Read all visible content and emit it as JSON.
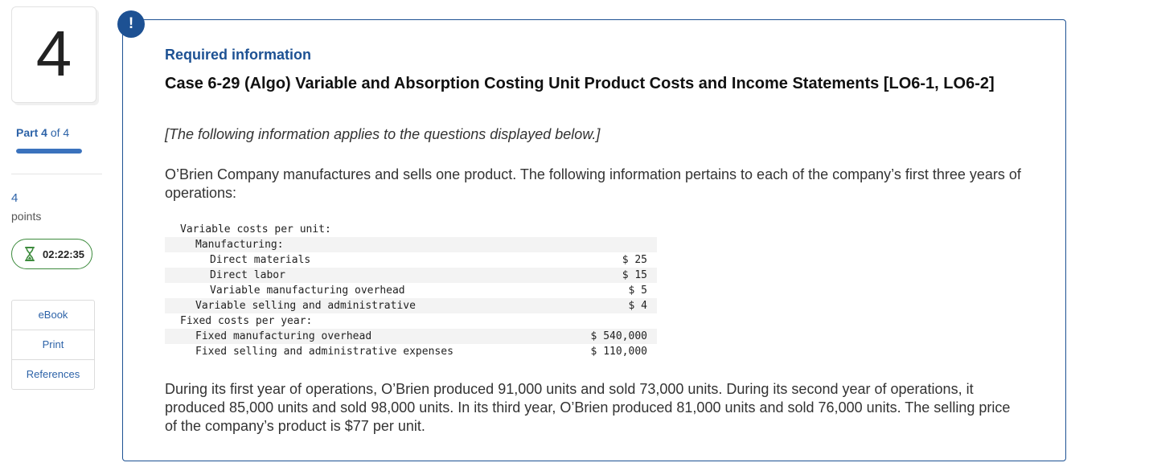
{
  "sidebar": {
    "question_number": "4",
    "part": {
      "word": "Part",
      "current": "4",
      "of_text": "of 4"
    },
    "progress_fraction": 1.0,
    "points_value": "4",
    "points_label": "points",
    "timer": "02:22:35",
    "tools": [
      "eBook",
      "Print",
      "References"
    ]
  },
  "main": {
    "badge": "!",
    "required_info": "Required information",
    "case_title": "Case 6-29 (Algo) Variable and Absorption Costing Unit Product Costs and Income Statements [LO6-1, LO6-2]",
    "intro": "[The following information applies to the questions displayed below.]",
    "paragraph1": "O’Brien Company manufactures and sells one product. The following information pertains to each of the company’s first three years of operations:",
    "table": [
      {
        "label": "Variable costs per unit:",
        "value": ""
      },
      {
        "label": "Manufacturing:",
        "value": ""
      },
      {
        "label": "Direct materials",
        "value": "$ 25"
      },
      {
        "label": "Direct labor",
        "value": "$ 15"
      },
      {
        "label": "Variable manufacturing overhead",
        "value": "$ 5"
      },
      {
        "label": "Variable selling and administrative",
        "value": "$ 4"
      },
      {
        "label": "Fixed costs per year:",
        "value": ""
      },
      {
        "label": "Fixed manufacturing overhead",
        "value": "$ 540,000"
      },
      {
        "label": "Fixed selling and administrative expenses",
        "value": "$ 110,000"
      }
    ],
    "paragraph2": "During its first year of operations, O’Brien produced 91,000 units and sold 73,000 units. During its second year of operations, it produced 85,000 units and sold 98,000 units. In its third year, O’Brien produced 81,000 units and sold 76,000 units. The selling price of the company’s product is $77 per unit."
  },
  "colors": {
    "brand_blue": "#1d5193",
    "link_blue": "#2d63a8",
    "timer_green": "#3d8b3d"
  }
}
